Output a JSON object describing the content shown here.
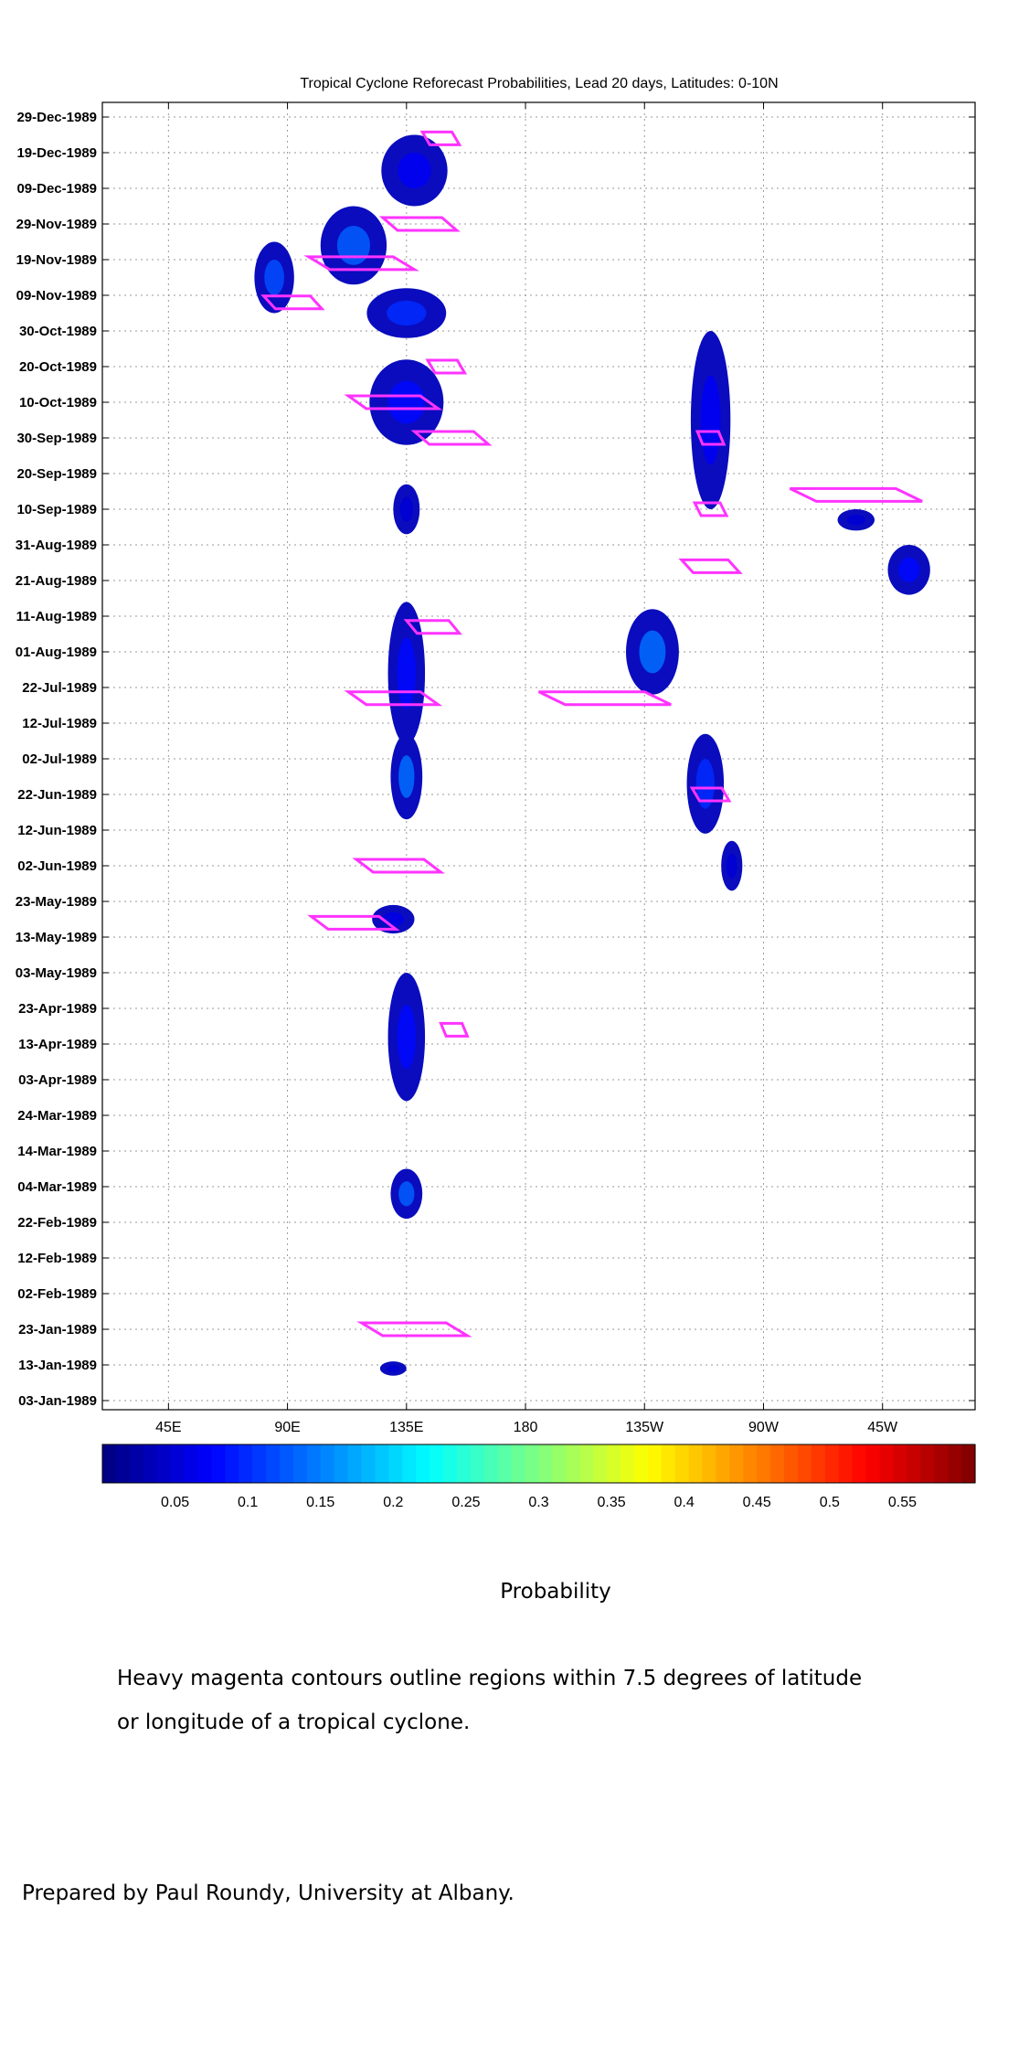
{
  "chart_data": {
    "type": "heatmap",
    "title": "Tropical Cyclone Reforecast Probabilities, Lead 20 days, Latitudes: 0-10N",
    "x_ticks": [
      "45E",
      "90E",
      "135E",
      "180",
      "135W",
      "90W",
      "45W"
    ],
    "x_tick_values": [
      45,
      90,
      135,
      180,
      225,
      270,
      315
    ],
    "x_range": [
      20,
      350
    ],
    "y_ticks": [
      "29-Dec-1989",
      "19-Dec-1989",
      "09-Dec-1989",
      "29-Nov-1989",
      "19-Nov-1989",
      "09-Nov-1989",
      "30-Oct-1989",
      "20-Oct-1989",
      "10-Oct-1989",
      "30-Sep-1989",
      "20-Sep-1989",
      "10-Sep-1989",
      "31-Aug-1989",
      "21-Aug-1989",
      "11-Aug-1989",
      "01-Aug-1989",
      "22-Jul-1989",
      "12-Jul-1989",
      "02-Jul-1989",
      "22-Jun-1989",
      "12-Jun-1989",
      "02-Jun-1989",
      "23-May-1989",
      "13-May-1989",
      "03-May-1989",
      "23-Apr-1989",
      "13-Apr-1989",
      "03-Apr-1989",
      "24-Mar-1989",
      "14-Mar-1989",
      "04-Mar-1989",
      "22-Feb-1989",
      "12-Feb-1989",
      "02-Feb-1989",
      "23-Jan-1989",
      "13-Jan-1989",
      "03-Jan-1989"
    ],
    "grid": true,
    "colorbar": {
      "ticks": [
        "0.05",
        "0.1",
        "0.15",
        "0.2",
        "0.25",
        "0.3",
        "0.35",
        "0.4",
        "0.45",
        "0.5",
        "0.55"
      ],
      "tick_values": [
        0.05,
        0.1,
        0.15,
        0.2,
        0.25,
        0.3,
        0.35,
        0.4,
        0.45,
        0.5,
        0.55
      ],
      "range": [
        0,
        0.6
      ],
      "label": "Probability"
    },
    "probability_regions": [
      {
        "lon": 115,
        "date": "23-Nov-1989",
        "lon_span": 25,
        "days_span": 22,
        "peak": 0.13
      },
      {
        "lon": 85,
        "date": "14-Nov-1989",
        "lon_span": 15,
        "days_span": 20,
        "peak": 0.12
      },
      {
        "lon": 135,
        "date": "04-Nov-1989",
        "lon_span": 30,
        "days_span": 14,
        "peak": 0.1
      },
      {
        "lon": 135,
        "date": "10-Oct-1989",
        "lon_span": 28,
        "days_span": 24,
        "peak": 0.08
      },
      {
        "lon": 138,
        "date": "14-Dec-1989",
        "lon_span": 25,
        "days_span": 20,
        "peak": 0.07
      },
      {
        "lon": 250,
        "date": "05-Oct-1989",
        "lon_span": 15,
        "days_span": 50,
        "peak": 0.07
      },
      {
        "lon": 228,
        "date": "01-Aug-1989",
        "lon_span": 20,
        "days_span": 24,
        "peak": 0.14
      },
      {
        "lon": 248,
        "date": "25-Jun-1989",
        "lon_span": 14,
        "days_span": 28,
        "peak": 0.1
      },
      {
        "lon": 135,
        "date": "26-Jul-1989",
        "lon_span": 14,
        "days_span": 40,
        "peak": 0.08
      },
      {
        "lon": 135,
        "date": "27-Jun-1989",
        "lon_span": 12,
        "days_span": 24,
        "peak": 0.14
      },
      {
        "lon": 135,
        "date": "15-Apr-1989",
        "lon_span": 14,
        "days_span": 36,
        "peak": 0.08
      },
      {
        "lon": 135,
        "date": "02-Mar-1989",
        "lon_span": 12,
        "days_span": 14,
        "peak": 0.13
      },
      {
        "lon": 130,
        "date": "18-May-1989",
        "lon_span": 16,
        "days_span": 8,
        "peak": 0.06
      },
      {
        "lon": 325,
        "date": "24-Aug-1989",
        "lon_span": 16,
        "days_span": 14,
        "peak": 0.08
      },
      {
        "lon": 305,
        "date": "07-Sep-1989",
        "lon_span": 14,
        "days_span": 6,
        "peak": 0.05
      },
      {
        "lon": 258,
        "date": "02-Jun-1989",
        "lon_span": 8,
        "days_span": 14,
        "peak": 0.05
      },
      {
        "lon": 135,
        "date": "10-Sep-1989",
        "lon_span": 10,
        "days_span": 14,
        "peak": 0.05
      },
      {
        "lon": 130,
        "date": "12-Jan-1989",
        "lon_span": 10,
        "days_span": 4,
        "peak": 0.05
      }
    ],
    "cyclone_contours": [
      {
        "lon": 148,
        "date": "23-Dec-1989",
        "lon_span": 14
      },
      {
        "lon": 140,
        "date": "29-Nov-1989",
        "lon_span": 28
      },
      {
        "lon": 118,
        "date": "18-Nov-1989",
        "lon_span": 40
      },
      {
        "lon": 92,
        "date": "07-Nov-1989",
        "lon_span": 22
      },
      {
        "lon": 150,
        "date": "20-Oct-1989",
        "lon_span": 14
      },
      {
        "lon": 130,
        "date": "10-Oct-1989",
        "lon_span": 34
      },
      {
        "lon": 152,
        "date": "30-Sep-1989",
        "lon_span": 28
      },
      {
        "lon": 250,
        "date": "30-Sep-1989",
        "lon_span": 10
      },
      {
        "lon": 250,
        "date": "10-Sep-1989",
        "lon_span": 12
      },
      {
        "lon": 305,
        "date": "14-Sep-1989",
        "lon_span": 50
      },
      {
        "lon": 250,
        "date": "25-Aug-1989",
        "lon_span": 22
      },
      {
        "lon": 145,
        "date": "08-Aug-1989",
        "lon_span": 20
      },
      {
        "lon": 210,
        "date": "19-Jul-1989",
        "lon_span": 50
      },
      {
        "lon": 130,
        "date": "19-Jul-1989",
        "lon_span": 34
      },
      {
        "lon": 250,
        "date": "22-Jun-1989",
        "lon_span": 14
      },
      {
        "lon": 132,
        "date": "02-Jun-1989",
        "lon_span": 32
      },
      {
        "lon": 115,
        "date": "17-May-1989",
        "lon_span": 32
      },
      {
        "lon": 153,
        "date": "17-Apr-1989",
        "lon_span": 10
      },
      {
        "lon": 138,
        "date": "23-Jan-1989",
        "lon_span": 40
      }
    ],
    "cyclone_color": "#ff33ff"
  },
  "caption_lines": [
    "Heavy magenta contours outline regions within 7.5 degrees of latitude",
    "or longitude of a tropical cyclone."
  ],
  "credit": "Prepared by Paul Roundy, University at Albany."
}
